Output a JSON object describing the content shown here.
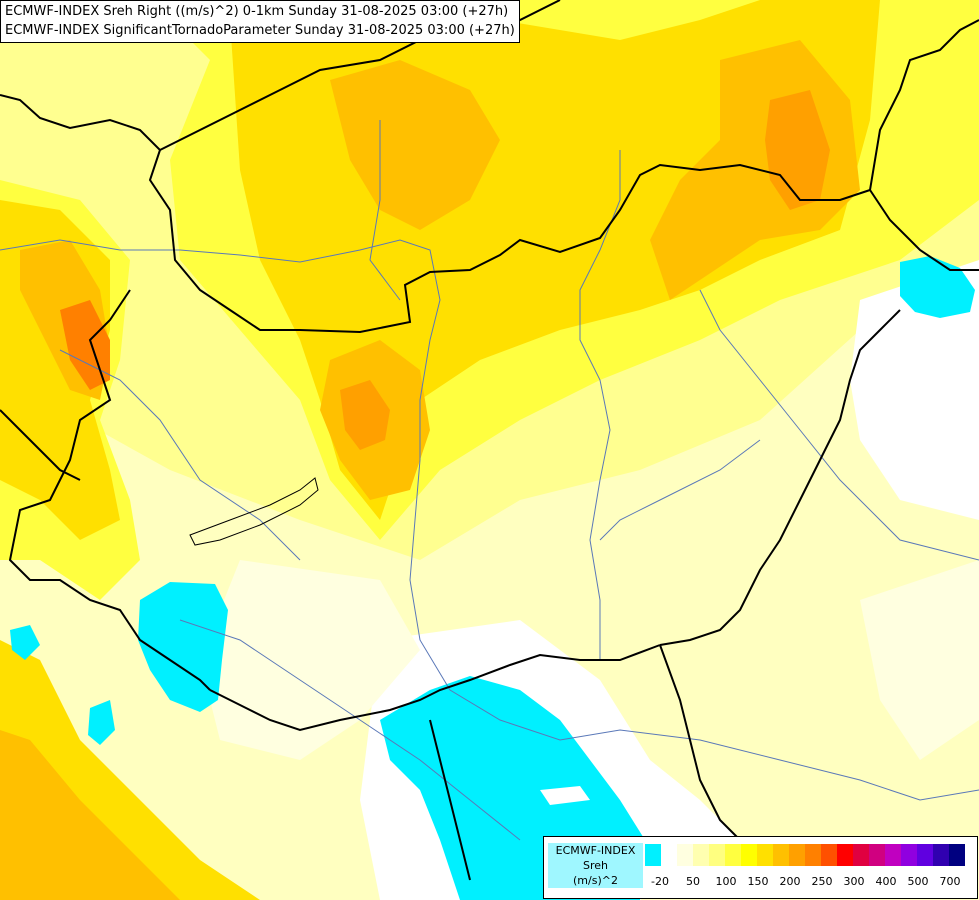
{
  "title": {
    "line1": "ECMWF-INDEX Sreh Right ((m/s)^2) 0-1km Sunday 31-08-2025 03:00 (+27h)",
    "line2": "ECMWF-INDEX SignificantTornadoParameter Sunday 31-08-2025 03:00 (+27h)"
  },
  "legend": {
    "source": "ECMWF-INDEX",
    "variable": "Sreh",
    "unit": "(m/s)^2",
    "colors": [
      "#00f0ff",
      "#ffffff",
      "#ffffe0",
      "#ffffb0",
      "#ffff80",
      "#ffff40",
      "#ffff00",
      "#ffe000",
      "#ffc000",
      "#ffa000",
      "#ff8000",
      "#ff5000",
      "#ff0000",
      "#e00040",
      "#d00080",
      "#c000c0",
      "#9000e0",
      "#6000e0",
      "#3000b0",
      "#000080"
    ],
    "tick_labels": [
      "-20",
      "50",
      "100",
      "150",
      "200",
      "250",
      "300",
      "400",
      "500",
      "700"
    ]
  },
  "map": {
    "borders-label": "country borders",
    "rivers-label": "rivers"
  }
}
